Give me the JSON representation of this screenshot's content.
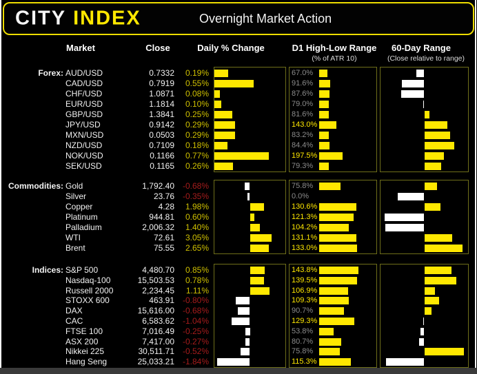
{
  "header": {
    "logo_city": "CITY",
    "logo_index": "INDEX",
    "title": "Overnight Market Action"
  },
  "columns": {
    "market": "Market",
    "close": "Close",
    "daily": "Daily % Change",
    "d1": "D1 High-Low Range",
    "d1_sub": "(% of ATR 10)",
    "range60": "60-Day Range",
    "range60_sub": "(Close relative to range)"
  },
  "colors": {
    "yellow": "#ffe800",
    "white_bar": "#ffffff",
    "positive_text": "#cfc000",
    "negative": "#a61c1c",
    "gray": "#8c8c8c",
    "panel_border": "#6f6f1a",
    "header_border": "#eedd00"
  },
  "chart_data": {
    "type": "bar",
    "title": "Overnight Market Action",
    "note": "Three grouped horizontal bar panels per section: Daily % Change (yellow=positive, white=negative), D1 High-Low Range as % of ATR 10 (label yellow when >=100%, gray otherwise), 60-Day Range close position (0-100, bars drawn from 50 midpoint; white=below mid, yellow=above mid)",
    "sections": [
      {
        "label": "Forex:",
        "daily_axis_pct": [
          0,
          1
        ],
        "d1_axis_max_pct": 480,
        "rows": [
          {
            "market": "AUD/USD",
            "close": "0.7332",
            "daily": 0.19,
            "daily_label": "0.19%",
            "d1": 67.0,
            "d1_label": "67.0%",
            "range60_pos": 41
          },
          {
            "market": "CAD/USD",
            "close": "0.7919",
            "daily": 0.55,
            "daily_label": "0.55%",
            "d1": 91.6,
            "d1_label": "91.6%",
            "range60_pos": 24
          },
          {
            "market": "CHF/USD",
            "close": "1.0871",
            "daily": 0.08,
            "daily_label": "0.08%",
            "d1": 87.6,
            "d1_label": "87.6%",
            "range60_pos": 23
          },
          {
            "market": "EUR/USD",
            "close": "1.1814",
            "daily": 0.1,
            "daily_label": "0.10%",
            "d1": 79.0,
            "d1_label": "79.0%",
            "range60_pos": 49
          },
          {
            "market": "GBP/USD",
            "close": "1.3841",
            "daily": 0.25,
            "daily_label": "0.25%",
            "d1": 81.6,
            "d1_label": "81.6%",
            "range60_pos": 56
          },
          {
            "market": "JPY/USD",
            "close": "0.9142",
            "daily": 0.29,
            "daily_label": "0.29%",
            "d1": 143.0,
            "d1_label": "143.0%",
            "range60_pos": 77
          },
          {
            "market": "MXN/USD",
            "close": "0.0503",
            "daily": 0.29,
            "daily_label": "0.29%",
            "d1": 83.2,
            "d1_label": "83.2%",
            "range60_pos": 80
          },
          {
            "market": "NZD/USD",
            "close": "0.7109",
            "daily": 0.18,
            "daily_label": "0.18%",
            "d1": 84.4,
            "d1_label": "84.4%",
            "range60_pos": 85
          },
          {
            "market": "NOK/USD",
            "close": "0.1166",
            "daily": 0.77,
            "daily_label": "0.77%",
            "d1": 197.5,
            "d1_label": "197.5%",
            "range60_pos": 73
          },
          {
            "market": "SEK/USD",
            "close": "0.1165",
            "daily": 0.26,
            "daily_label": "0.26%",
            "d1": 79.3,
            "d1_label": "79.3%",
            "range60_pos": 70
          }
        ]
      },
      {
        "label": "Commodities:",
        "daily_axis_pct": [
          -5,
          5
        ],
        "d1_axis_max_pct": 200,
        "rows": [
          {
            "market": "Gold",
            "close": "1,792.40",
            "daily": -0.68,
            "daily_label": "-0.68%",
            "d1": 75.8,
            "d1_label": "75.8%",
            "range60_pos": 65
          },
          {
            "market": "Silver",
            "close": "23.76",
            "daily": -0.35,
            "daily_label": "-0.35%",
            "d1": 0.0,
            "d1_label": "0.0%",
            "range60_pos": 19
          },
          {
            "market": "Copper",
            "close": "4.28",
            "daily": 1.98,
            "daily_label": "1.98%",
            "d1": 130.6,
            "d1_label": "130.6%",
            "range60_pos": 69
          },
          {
            "market": "Platinum",
            "close": "944.81",
            "daily": 0.6,
            "daily_label": "0.60%",
            "d1": 121.3,
            "d1_label": "121.3%",
            "range60_pos": 3
          },
          {
            "market": "Palladium",
            "close": "2,006.32",
            "daily": 1.4,
            "daily_label": "1.40%",
            "d1": 104.2,
            "d1_label": "104.2%",
            "range60_pos": 4
          },
          {
            "market": "WTI",
            "close": "72.61",
            "daily": 3.05,
            "daily_label": "3.05%",
            "d1": 131.1,
            "d1_label": "131.1%",
            "range60_pos": 83
          },
          {
            "market": "Brent",
            "close": "75.55",
            "daily": 2.65,
            "daily_label": "2.65%",
            "d1": 133.0,
            "d1_label": "133.0%",
            "range60_pos": 95
          }
        ]
      },
      {
        "label": "Indices:",
        "daily_axis_pct": [
          -2,
          2
        ],
        "d1_axis_max_pct": 210,
        "rows": [
          {
            "market": "S&P 500",
            "close": "4,480.70",
            "daily": 0.85,
            "daily_label": "0.85%",
            "d1": 143.8,
            "d1_label": "143.8%",
            "range60_pos": 82
          },
          {
            "market": "Nasdaq-100",
            "close": "15,503.53",
            "daily": 0.78,
            "daily_label": "0.78%",
            "d1": 139.5,
            "d1_label": "139.5%",
            "range60_pos": 88
          },
          {
            "market": "Russell 2000",
            "close": "2,234.45",
            "daily": 1.11,
            "daily_label": "1.11%",
            "d1": 106.9,
            "d1_label": "106.9%",
            "range60_pos": 62
          },
          {
            "market": "STOXX 600",
            "close": "463.91",
            "daily": -0.8,
            "daily_label": "-0.80%",
            "d1": 109.3,
            "d1_label": "109.3%",
            "range60_pos": 67
          },
          {
            "market": "DAX",
            "close": "15,616.00",
            "daily": -0.68,
            "daily_label": "-0.68%",
            "d1": 90.7,
            "d1_label": "90.7%",
            "range60_pos": 58
          },
          {
            "market": "CAC",
            "close": "6,583.62",
            "daily": -1.04,
            "daily_label": "-1.04%",
            "d1": 129.3,
            "d1_label": "129.3%",
            "range60_pos": 49
          },
          {
            "market": "FTSE 100",
            "close": "7,016.49",
            "daily": -0.25,
            "daily_label": "-0.25%",
            "d1": 53.8,
            "d1_label": "53.8%",
            "range60_pos": 46
          },
          {
            "market": "ASX 200",
            "close": "7,417.00",
            "daily": -0.27,
            "daily_label": "-0.27%",
            "d1": 80.7,
            "d1_label": "80.7%",
            "range60_pos": 44
          },
          {
            "market": "Nikkei 225",
            "close": "30,511.71",
            "daily": -0.52,
            "daily_label": "-0.52%",
            "d1": 75.8,
            "d1_label": "75.8%",
            "range60_pos": 97
          },
          {
            "market": "Hang Seng",
            "close": "25,033.21",
            "daily": -1.84,
            "daily_label": "-1.84%",
            "d1": 115.3,
            "d1_label": "115.3%",
            "range60_pos": 5
          }
        ]
      }
    ]
  }
}
